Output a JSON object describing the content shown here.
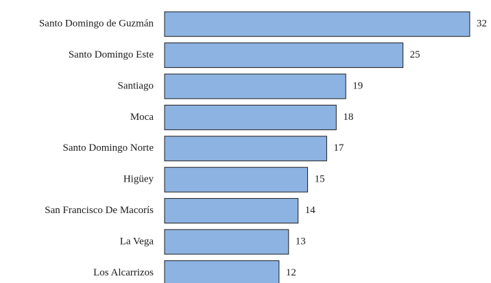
{
  "chart_data": {
    "type": "bar",
    "orientation": "horizontal",
    "categories": [
      "Santo Domingo de Guzmán",
      "Santo Domingo Este",
      "Santiago",
      "Moca",
      "Santo Domingo Norte",
      "Higüey",
      "San Francisco De Macorís",
      "La Vega",
      "Los Alcarrizos"
    ],
    "values": [
      32,
      25,
      19,
      18,
      17,
      15,
      14,
      13,
      12
    ],
    "color": "#8db3e2"
  }
}
